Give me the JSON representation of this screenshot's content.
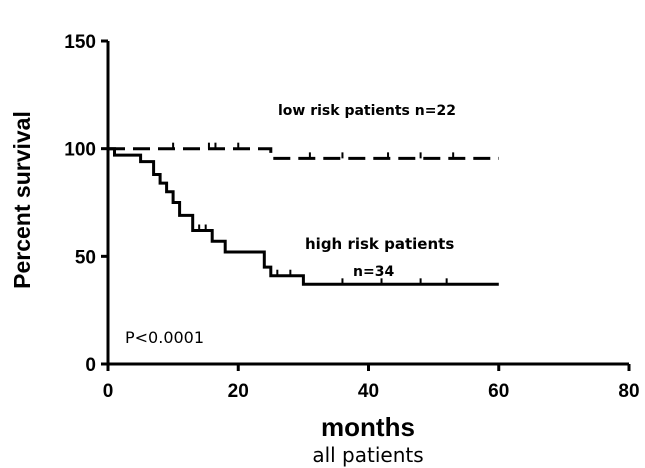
{
  "chart_data": {
    "type": "line",
    "title": "",
    "xlabel": "months",
    "caption": "all patients",
    "ylabel": "Percent survival",
    "xlim": [
      0,
      80
    ],
    "ylim": [
      0,
      150
    ],
    "xticks": [
      0,
      20,
      40,
      60,
      80
    ],
    "yticks": [
      0,
      50,
      100,
      150
    ],
    "grid": false,
    "annotations": [
      {
        "id": "low-label",
        "text": "low risk patients  n=22"
      },
      {
        "id": "high-label",
        "text": "high risk patients"
      },
      {
        "id": "high-n",
        "text": "n=34"
      },
      {
        "id": "pvalue",
        "text": "P<0.0001"
      }
    ],
    "series": [
      {
        "name": "low risk patients",
        "style": "dashed",
        "steps": [
          [
            0,
            100
          ],
          [
            25,
            100
          ],
          [
            25,
            95.5
          ],
          [
            60,
            95.5
          ]
        ],
        "censored": [
          [
            10,
            100
          ],
          [
            15.5,
            100
          ],
          [
            16.5,
            100
          ],
          [
            20,
            100
          ],
          [
            31,
            95.5
          ],
          [
            36,
            95.5
          ],
          [
            43,
            95.5
          ],
          [
            48,
            95.5
          ],
          [
            53,
            95.5
          ]
        ]
      },
      {
        "name": "high risk patients",
        "style": "solid",
        "steps": [
          [
            0,
            100
          ],
          [
            1,
            100
          ],
          [
            1,
            97
          ],
          [
            5,
            97
          ],
          [
            5,
            94
          ],
          [
            7,
            94
          ],
          [
            7,
            88
          ],
          [
            8,
            88
          ],
          [
            8,
            84
          ],
          [
            9,
            84
          ],
          [
            9,
            80
          ],
          [
            10,
            80
          ],
          [
            10,
            75
          ],
          [
            11,
            75
          ],
          [
            11,
            69
          ],
          [
            13,
            69
          ],
          [
            13,
            62
          ],
          [
            16,
            62
          ],
          [
            16,
            57
          ],
          [
            18,
            57
          ],
          [
            18,
            52
          ],
          [
            24,
            52
          ],
          [
            24,
            45
          ],
          [
            25,
            45
          ],
          [
            25,
            41
          ],
          [
            30,
            41
          ],
          [
            30,
            37
          ],
          [
            60,
            37
          ]
        ],
        "censored": [
          [
            14,
            62
          ],
          [
            15,
            62
          ],
          [
            26,
            41
          ],
          [
            28,
            41
          ],
          [
            36,
            37
          ],
          [
            42,
            37
          ],
          [
            48,
            37
          ],
          [
            52,
            37
          ]
        ]
      }
    ]
  }
}
